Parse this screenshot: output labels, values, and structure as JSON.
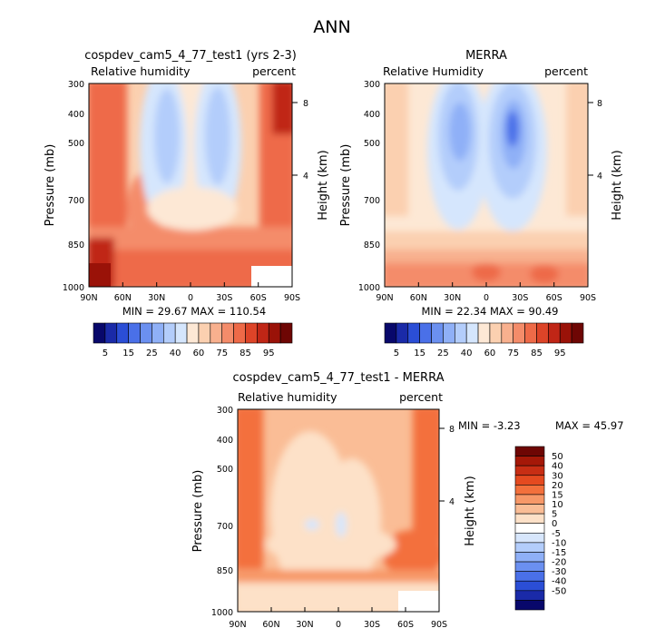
{
  "page_title": "ANN",
  "chart_data": [
    {
      "type": "heatmap",
      "title": "cospdev_cam5_4_77_test1 (yrs 2-3)",
      "variable": "Relative humidity",
      "units": "percent",
      "ylabel": "Pressure (mb)",
      "right_label": "Height (km)",
      "x_ticks": [
        "90N",
        "60N",
        "30N",
        "0",
        "30S",
        "60S",
        "90S"
      ],
      "y_ticks": [
        "300",
        "400",
        "500",
        "700",
        "850",
        "1000"
      ],
      "height_ticks": [
        "8",
        "4"
      ],
      "stats": "MIN =  29.67   MAX = 110.54",
      "colorbar_labels": [
        "5",
        "15",
        "25",
        "40",
        "60",
        "75",
        "85",
        "95"
      ]
    },
    {
      "type": "heatmap",
      "title": "MERRA",
      "variable": "Relative Humidity",
      "units": "percent",
      "ylabel": "Pressure (mb)",
      "right_label": "Height (km)",
      "x_ticks": [
        "90N",
        "60N",
        "30N",
        "0",
        "30S",
        "60S",
        "90S"
      ],
      "y_ticks": [
        "300",
        "400",
        "500",
        "700",
        "850",
        "1000"
      ],
      "height_ticks": [
        "8",
        "4"
      ],
      "stats": "MIN =  22.34   MAX =  90.49",
      "colorbar_labels": [
        "5",
        "15",
        "25",
        "40",
        "60",
        "75",
        "85",
        "95"
      ]
    },
    {
      "type": "heatmap",
      "title": "cospdev_cam5_4_77_test1 - MERRA",
      "variable": "Relative humidity",
      "units": "percent",
      "ylabel": "Pressure (mb)",
      "right_label": "Height (km)",
      "x_ticks": [
        "90N",
        "60N",
        "30N",
        "0",
        "30S",
        "60S",
        "90S"
      ],
      "y_ticks": [
        "300",
        "400",
        "500",
        "700",
        "850",
        "1000"
      ],
      "height_ticks": [
        "8",
        "4"
      ],
      "stats_min": "MIN =   -3.23",
      "stats_max": "MAX =   45.97",
      "colorbar_labels": [
        "50",
        "40",
        "30",
        "20",
        "15",
        "10",
        "5",
        "0",
        "-5",
        "-10",
        "-15",
        "-20",
        "-30",
        "-40",
        "-50"
      ]
    }
  ],
  "colors": {
    "abs_scale": [
      "#08086b",
      "#1a2aa8",
      "#2b4ed6",
      "#4a70e8",
      "#6b90f0",
      "#8fb0f7",
      "#b3cdfb",
      "#d5e6fd",
      "#fde8d5",
      "#fbd0b0",
      "#f8b08e",
      "#f48c6a",
      "#ee6a48",
      "#dd4428",
      "#c02616",
      "#9a1208",
      "#6e0604"
    ],
    "diff_scale": [
      "#6e0604",
      "#a51808",
      "#c82e14",
      "#e54a20",
      "#f3703c",
      "#f79868",
      "#fabd96",
      "#fde1c8",
      "#ffffff",
      "#d7e6fc",
      "#b3cdfb",
      "#8fb0f7",
      "#6b90f0",
      "#4a70e8",
      "#2b4ed6",
      "#1a2aa8",
      "#08086b"
    ]
  }
}
